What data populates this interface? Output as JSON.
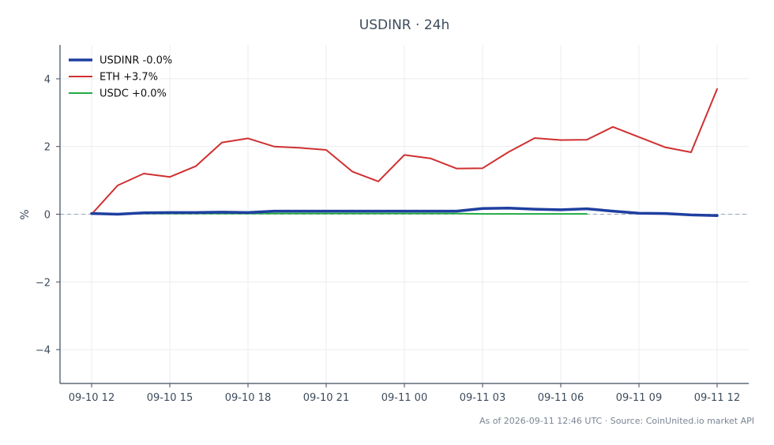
{
  "chart_data": {
    "type": "line",
    "title": "USDINR · 24h",
    "xlabel": "",
    "ylabel": "%",
    "x": [
      "09-10 12",
      "09-10 13",
      "09-10 14",
      "09-10 15",
      "09-10 16",
      "09-10 17",
      "09-10 18",
      "09-10 19",
      "09-10 20",
      "09-10 21",
      "09-10 22",
      "09-10 23",
      "09-11 00",
      "09-11 01",
      "09-11 02",
      "09-11 03",
      "09-11 04",
      "09-11 05",
      "09-11 06",
      "09-11 07",
      "09-11 08",
      "09-11 09",
      "09-11 10",
      "09-11 11",
      "09-11 12"
    ],
    "xticks": [
      "09-10 12",
      "09-10 15",
      "09-10 18",
      "09-10 21",
      "09-11 00",
      "09-11 03",
      "09-11 06",
      "09-11 09",
      "09-11 12"
    ],
    "yticks": [
      4,
      2,
      0,
      -2,
      -4
    ],
    "ytick_labels": [
      "4",
      "2",
      "0",
      "−2",
      "−4"
    ],
    "ylim": [
      -5,
      5
    ],
    "grid": true,
    "legend_position": "top-left",
    "zero_line": true,
    "series": [
      {
        "name": "USDINR -0.0%",
        "color": "#1f3fa0",
        "width": 3.5,
        "values": [
          0.02,
          0.0,
          0.04,
          0.05,
          0.05,
          0.06,
          0.05,
          0.09,
          0.09,
          0.09,
          0.09,
          0.09,
          0.09,
          0.09,
          0.09,
          0.17,
          0.18,
          0.15,
          0.13,
          0.16,
          0.09,
          0.03,
          0.02,
          -0.02,
          -0.04
        ]
      },
      {
        "name": "ETH +3.7%",
        "color": "#d03030",
        "width": 2,
        "values": [
          0.0,
          0.85,
          1.2,
          1.1,
          1.42,
          2.12,
          2.24,
          2.0,
          1.96,
          1.9,
          1.26,
          0.97,
          1.75,
          1.65,
          1.35,
          1.36,
          1.84,
          2.25,
          2.19,
          2.2,
          2.58,
          2.28,
          1.98,
          1.83,
          3.7
        ]
      },
      {
        "name": "USDC +0.0%",
        "color": "#22aa44",
        "width": 2,
        "values": [
          null,
          0.01,
          0.02,
          0.02,
          0.02,
          0.02,
          0.02,
          0.02,
          0.02,
          0.02,
          0.02,
          0.02,
          0.02,
          0.02,
          0.02,
          0.01,
          0.01,
          0.01,
          0.01,
          0.01,
          null,
          null,
          null,
          null,
          null
        ]
      }
    ]
  },
  "footer": "As of 2026-09-11 12:46 UTC · Source: CoinUnited.io market API"
}
